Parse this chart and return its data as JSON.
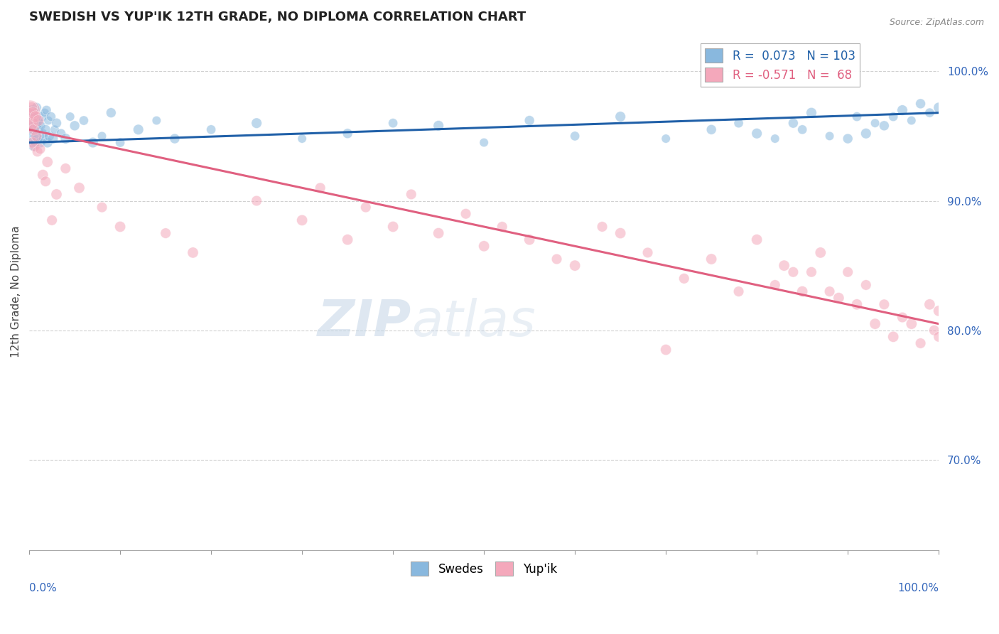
{
  "title": "SWEDISH VS YUP'IK 12TH GRADE, NO DIPLOMA CORRELATION CHART",
  "source": "Source: ZipAtlas.com",
  "ylabel": "12th Grade, No Diploma",
  "right_yticks": [
    70.0,
    80.0,
    90.0,
    100.0
  ],
  "swedes_color": "#89b8de",
  "yupik_color": "#f4a8bb",
  "swedes_label": "Swedes",
  "yupik_label": "Yup'ik",
  "trend_blue_color": "#2060a8",
  "trend_pink_color": "#e06080",
  "background_color": "#ffffff",
  "grid_color": "#cccccc",
  "blue_trend_x0": 0.0,
  "blue_trend_x1": 100.0,
  "blue_trend_y0": 94.5,
  "blue_trend_y1": 96.8,
  "pink_trend_x0": 0.0,
  "pink_trend_x1": 100.0,
  "pink_trend_y0": 95.5,
  "pink_trend_y1": 80.5,
  "xlim": [
    0.0,
    100.0
  ],
  "ylim": [
    63.0,
    103.0
  ],
  "watermark_zip": "ZIP",
  "watermark_atlas": "atlas",
  "swedes_x": [
    0.1,
    0.15,
    0.2,
    0.25,
    0.3,
    0.35,
    0.4,
    0.45,
    0.5,
    0.55,
    0.6,
    0.65,
    0.7,
    0.75,
    0.8,
    0.85,
    0.9,
    0.95,
    1.0,
    1.1,
    1.2,
    1.3,
    1.4,
    1.5,
    1.6,
    1.7,
    1.8,
    1.9,
    2.0,
    2.1,
    2.2,
    2.4,
    2.6,
    2.8,
    3.0,
    3.5,
    4.0,
    4.5,
    5.0,
    6.0,
    7.0,
    8.0,
    9.0,
    10.0,
    12.0,
    14.0,
    16.0,
    20.0,
    25.0,
    30.0,
    35.0,
    40.0,
    45.0,
    50.0,
    55.0,
    60.0,
    65.0,
    70.0,
    75.0,
    78.0,
    80.0,
    82.0,
    84.0,
    85.0,
    86.0,
    88.0,
    90.0,
    91.0,
    92.0,
    93.0,
    94.0,
    95.0,
    96.0,
    97.0,
    98.0,
    99.0,
    100.0
  ],
  "swedes_y": [
    94.8,
    95.5,
    96.2,
    94.5,
    97.0,
    95.8,
    96.5,
    94.2,
    95.5,
    96.8,
    95.0,
    94.5,
    96.0,
    95.5,
    97.2,
    95.8,
    94.8,
    96.2,
    95.5,
    96.0,
    94.5,
    95.8,
    96.5,
    95.2,
    94.8,
    96.8,
    95.5,
    97.0,
    94.5,
    96.2,
    95.0,
    96.5,
    94.8,
    95.5,
    96.0,
    95.2,
    94.8,
    96.5,
    95.8,
    96.2,
    94.5,
    95.0,
    96.8,
    94.5,
    95.5,
    96.2,
    94.8,
    95.5,
    96.0,
    94.8,
    95.2,
    96.0,
    95.8,
    94.5,
    96.2,
    95.0,
    96.5,
    94.8,
    95.5,
    96.0,
    95.2,
    94.8,
    96.0,
    95.5,
    96.8,
    95.0,
    94.8,
    96.5,
    95.2,
    96.0,
    95.8,
    96.5,
    97.0,
    96.2,
    97.5,
    96.8,
    97.2
  ],
  "swedes_size": [
    80,
    60,
    50,
    45,
    55,
    40,
    50,
    45,
    55,
    40,
    50,
    45,
    55,
    40,
    50,
    45,
    55,
    40,
    50,
    45,
    55,
    40,
    50,
    45,
    55,
    40,
    50,
    45,
    55,
    40,
    50,
    45,
    55,
    40,
    50,
    45,
    55,
    40,
    50,
    45,
    55,
    40,
    50,
    45,
    55,
    40,
    50,
    45,
    55,
    40,
    50,
    45,
    55,
    40,
    50,
    45,
    55,
    40,
    50,
    45,
    55,
    40,
    50,
    45,
    55,
    40,
    50,
    45,
    55,
    40,
    50,
    45,
    55,
    40,
    50,
    45,
    55
  ],
  "yupik_x": [
    0.1,
    0.15,
    0.2,
    0.25,
    0.3,
    0.35,
    0.4,
    0.5,
    0.6,
    0.7,
    0.8,
    0.9,
    1.0,
    1.2,
    1.5,
    1.8,
    2.0,
    2.5,
    3.0,
    4.0,
    5.5,
    8.0,
    10.0,
    15.0,
    18.0,
    25.0,
    30.0,
    32.0,
    35.0,
    37.0,
    40.0,
    42.0,
    45.0,
    48.0,
    50.0,
    52.0,
    55.0,
    58.0,
    60.0,
    63.0,
    65.0,
    68.0,
    70.0,
    72.0,
    75.0,
    78.0,
    80.0,
    82.0,
    83.0,
    84.0,
    85.0,
    86.0,
    87.0,
    88.0,
    89.0,
    90.0,
    91.0,
    92.0,
    93.0,
    94.0,
    95.0,
    96.0,
    97.0,
    98.0,
    99.0,
    99.5,
    100.0,
    100.0
  ],
  "yupik_y": [
    97.0,
    96.5,
    95.8,
    97.2,
    96.0,
    94.5,
    96.8,
    95.5,
    94.2,
    96.5,
    95.0,
    93.8,
    96.2,
    94.0,
    92.0,
    91.5,
    93.0,
    88.5,
    90.5,
    92.5,
    91.0,
    89.5,
    88.0,
    87.5,
    86.0,
    90.0,
    88.5,
    91.0,
    87.0,
    89.5,
    88.0,
    90.5,
    87.5,
    89.0,
    86.5,
    88.0,
    87.0,
    85.5,
    85.0,
    88.0,
    87.5,
    86.0,
    78.5,
    84.0,
    85.5,
    83.0,
    87.0,
    83.5,
    85.0,
    84.5,
    83.0,
    84.5,
    86.0,
    83.0,
    82.5,
    84.5,
    82.0,
    83.5,
    80.5,
    82.0,
    79.5,
    81.0,
    80.5,
    79.0,
    82.0,
    80.0,
    81.5,
    79.5
  ],
  "yupik_size": [
    200,
    150,
    80,
    70,
    90,
    60,
    75,
    65,
    55,
    70,
    60,
    55,
    65,
    55,
    60,
    55,
    60,
    55,
    60,
    55,
    60,
    55,
    60,
    55,
    60,
    55,
    60,
    55,
    60,
    55,
    60,
    55,
    60,
    55,
    60,
    55,
    60,
    55,
    60,
    55,
    60,
    55,
    60,
    55,
    60,
    55,
    60,
    55,
    60,
    55,
    60,
    55,
    60,
    55,
    60,
    55,
    60,
    55,
    60,
    55,
    60,
    55,
    60,
    55,
    60,
    55,
    60,
    55
  ]
}
